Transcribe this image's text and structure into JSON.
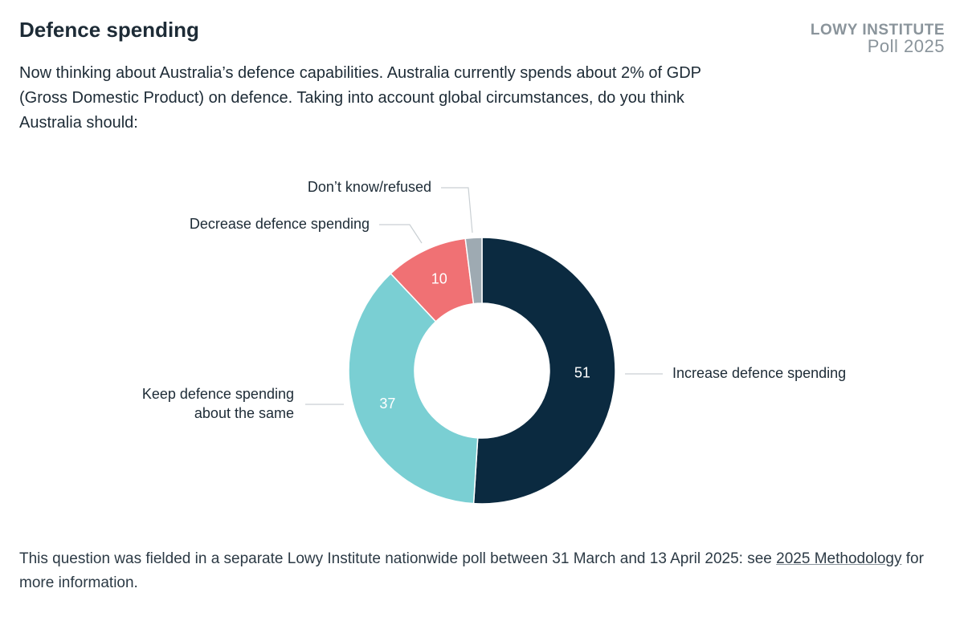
{
  "header": {
    "title": "Defence spending",
    "brand": "LOWY INSTITUTE",
    "brand_sub": "Poll 2025",
    "question": "Now thinking about Australia’s defence capabilities. Australia currently spends about 2% of GDP (Gross Domestic Product) on defence. Taking into account global circumstances, do you think Australia should:"
  },
  "chart_data": {
    "type": "donut",
    "categories": [
      "Increase defence spending",
      "Keep defence spending about the same",
      "Decrease defence spending",
      "Don’t know/refused"
    ],
    "values": [
      51,
      37,
      10,
      2
    ],
    "colors": [
      "#0b2a40",
      "#7acfd3",
      "#f07174",
      "#9eaab2"
    ]
  },
  "footnote": {
    "before": "This question was fielded in a separate Lowy Institute nationwide poll between 31 March and 13 April 2025: see",
    "link": "2025 Methodology",
    "after": "for more information."
  }
}
